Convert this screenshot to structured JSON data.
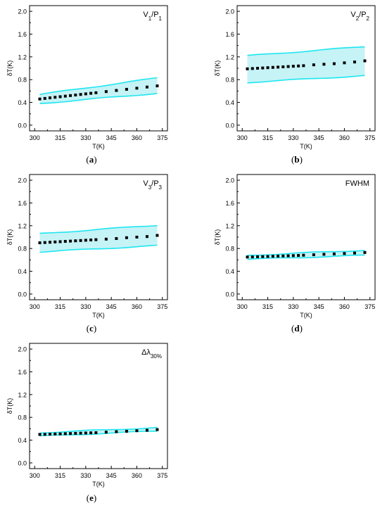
{
  "colors": {
    "band_fill": "#c6f3f6",
    "band_line": "#1ee6f0",
    "points": "#000000",
    "axis": "#000000"
  },
  "chart_data": [
    {
      "id": "a",
      "type": "line",
      "caption_letter": "a",
      "caption_text": "(a)",
      "annotation": {
        "base": "V",
        "sub1": "1",
        "mid": "/P",
        "sub2": "1"
      },
      "xlabel": "T(K)",
      "ylabel": "δT(K)",
      "xlim": [
        297,
        378
      ],
      "ylim": [
        -0.1,
        2.1
      ],
      "xticks": [
        "300",
        "315",
        "330",
        "345",
        "360",
        "375"
      ],
      "yticks": [
        "0.0",
        "0.4",
        "0.8",
        "1.2",
        "1.6",
        "2.0"
      ],
      "x": [
        303,
        306,
        309,
        312,
        315,
        318,
        321,
        324,
        327,
        330,
        333,
        336,
        342,
        348,
        354,
        360,
        366,
        372
      ],
      "y": [
        0.46,
        0.47,
        0.48,
        0.49,
        0.5,
        0.51,
        0.52,
        0.53,
        0.54,
        0.55,
        0.56,
        0.57,
        0.59,
        0.61,
        0.63,
        0.65,
        0.67,
        0.69
      ],
      "band_x": [
        303,
        372
      ],
      "band_upper": [
        0.54,
        0.83
      ],
      "band_lower": [
        0.38,
        0.56
      ],
      "grid": false
    },
    {
      "id": "b",
      "type": "line",
      "caption_letter": "b",
      "caption_text": "(b)",
      "annotation": {
        "base": "V",
        "sub1": "2",
        "mid": "/P",
        "sub2": "2"
      },
      "xlabel": "T(K)",
      "ylabel": "δT(K)",
      "xlim": [
        297,
        378
      ],
      "ylim": [
        -0.1,
        2.1
      ],
      "xticks": [
        "300",
        "315",
        "330",
        "345",
        "360",
        "375"
      ],
      "yticks": [
        "0.0",
        "0.4",
        "0.8",
        "1.2",
        "1.6",
        "2.0"
      ],
      "x": [
        303,
        306,
        309,
        312,
        315,
        318,
        321,
        324,
        327,
        330,
        333,
        336,
        342,
        348,
        354,
        360,
        366,
        372
      ],
      "y": [
        0.99,
        0.995,
        1.0,
        1.005,
        1.01,
        1.015,
        1.02,
        1.025,
        1.03,
        1.035,
        1.04,
        1.045,
        1.06,
        1.07,
        1.08,
        1.095,
        1.11,
        1.13
      ],
      "band_x": [
        303,
        372
      ],
      "band_upper": [
        1.22,
        1.38
      ],
      "band_lower": [
        0.75,
        0.87
      ],
      "grid": false
    },
    {
      "id": "c",
      "type": "line",
      "caption_letter": "c",
      "caption_text": "(c)",
      "annotation": {
        "base": "V",
        "sub1": "3",
        "mid": "/P",
        "sub2": "3"
      },
      "xlabel": "T(K)",
      "ylabel": "δT(K)",
      "xlim": [
        297,
        378
      ],
      "ylim": [
        -0.1,
        2.1
      ],
      "xticks": [
        "300",
        "315",
        "330",
        "345",
        "360",
        "375"
      ],
      "yticks": [
        "0.0",
        "0.4",
        "0.8",
        "1.2",
        "1.6",
        "2.0"
      ],
      "x": [
        303,
        306,
        309,
        312,
        315,
        318,
        321,
        324,
        327,
        330,
        333,
        336,
        342,
        348,
        354,
        360,
        366,
        372
      ],
      "y": [
        0.9,
        0.905,
        0.91,
        0.915,
        0.92,
        0.925,
        0.93,
        0.935,
        0.94,
        0.945,
        0.95,
        0.955,
        0.965,
        0.975,
        0.99,
        1.0,
        1.01,
        1.03
      ],
      "band_x": [
        303,
        372
      ],
      "band_upper": [
        1.06,
        1.21
      ],
      "band_lower": [
        0.74,
        0.85
      ],
      "grid": false
    },
    {
      "id": "d",
      "type": "line",
      "caption_letter": "d",
      "caption_text": "(d)",
      "annotation": {
        "base": "FWHM",
        "sub1": "",
        "mid": "",
        "sub2": ""
      },
      "xlabel": "T(K)",
      "ylabel": "δT(K)",
      "xlim": [
        297,
        378
      ],
      "ylim": [
        -0.1,
        2.1
      ],
      "xticks": [
        "300",
        "315",
        "330",
        "345",
        "360",
        "375"
      ],
      "yticks": [
        "0.0",
        "0.4",
        "0.8",
        "1.2",
        "1.6",
        "2.0"
      ],
      "x": [
        303,
        306,
        309,
        312,
        315,
        318,
        321,
        324,
        327,
        330,
        333,
        336,
        342,
        348,
        354,
        360,
        366,
        372
      ],
      "y": [
        0.65,
        0.652,
        0.655,
        0.658,
        0.66,
        0.663,
        0.666,
        0.669,
        0.672,
        0.675,
        0.678,
        0.682,
        0.69,
        0.698,
        0.705,
        0.712,
        0.72,
        0.73
      ],
      "band_x": [
        303,
        372
      ],
      "band_upper": [
        0.68,
        0.77
      ],
      "band_lower": [
        0.61,
        0.68
      ],
      "grid": false
    },
    {
      "id": "e",
      "type": "line",
      "caption_letter": "e",
      "caption_text": "(e)",
      "annotation": {
        "base": "Δλ",
        "sub1": "30%",
        "mid": "",
        "sub2": ""
      },
      "xlabel": "T(K)",
      "ylabel": "δT(K)",
      "xlim": [
        297,
        378
      ],
      "ylim": [
        -0.1,
        2.1
      ],
      "xticks": [
        "300",
        "315",
        "330",
        "345",
        "360",
        "375"
      ],
      "yticks": [
        "0.0",
        "0.4",
        "0.8",
        "1.2",
        "1.6",
        "2.0"
      ],
      "x": [
        303,
        306,
        309,
        312,
        315,
        318,
        321,
        324,
        327,
        330,
        333,
        336,
        342,
        348,
        354,
        360,
        366,
        372
      ],
      "y": [
        0.5,
        0.502,
        0.505,
        0.508,
        0.51,
        0.513,
        0.516,
        0.519,
        0.522,
        0.525,
        0.528,
        0.531,
        0.54,
        0.548,
        0.556,
        0.565,
        0.573,
        0.585
      ],
      "band_x": [
        303,
        372
      ],
      "band_upper": [
        0.53,
        0.62
      ],
      "band_lower": [
        0.47,
        0.56
      ],
      "grid": false
    }
  ]
}
